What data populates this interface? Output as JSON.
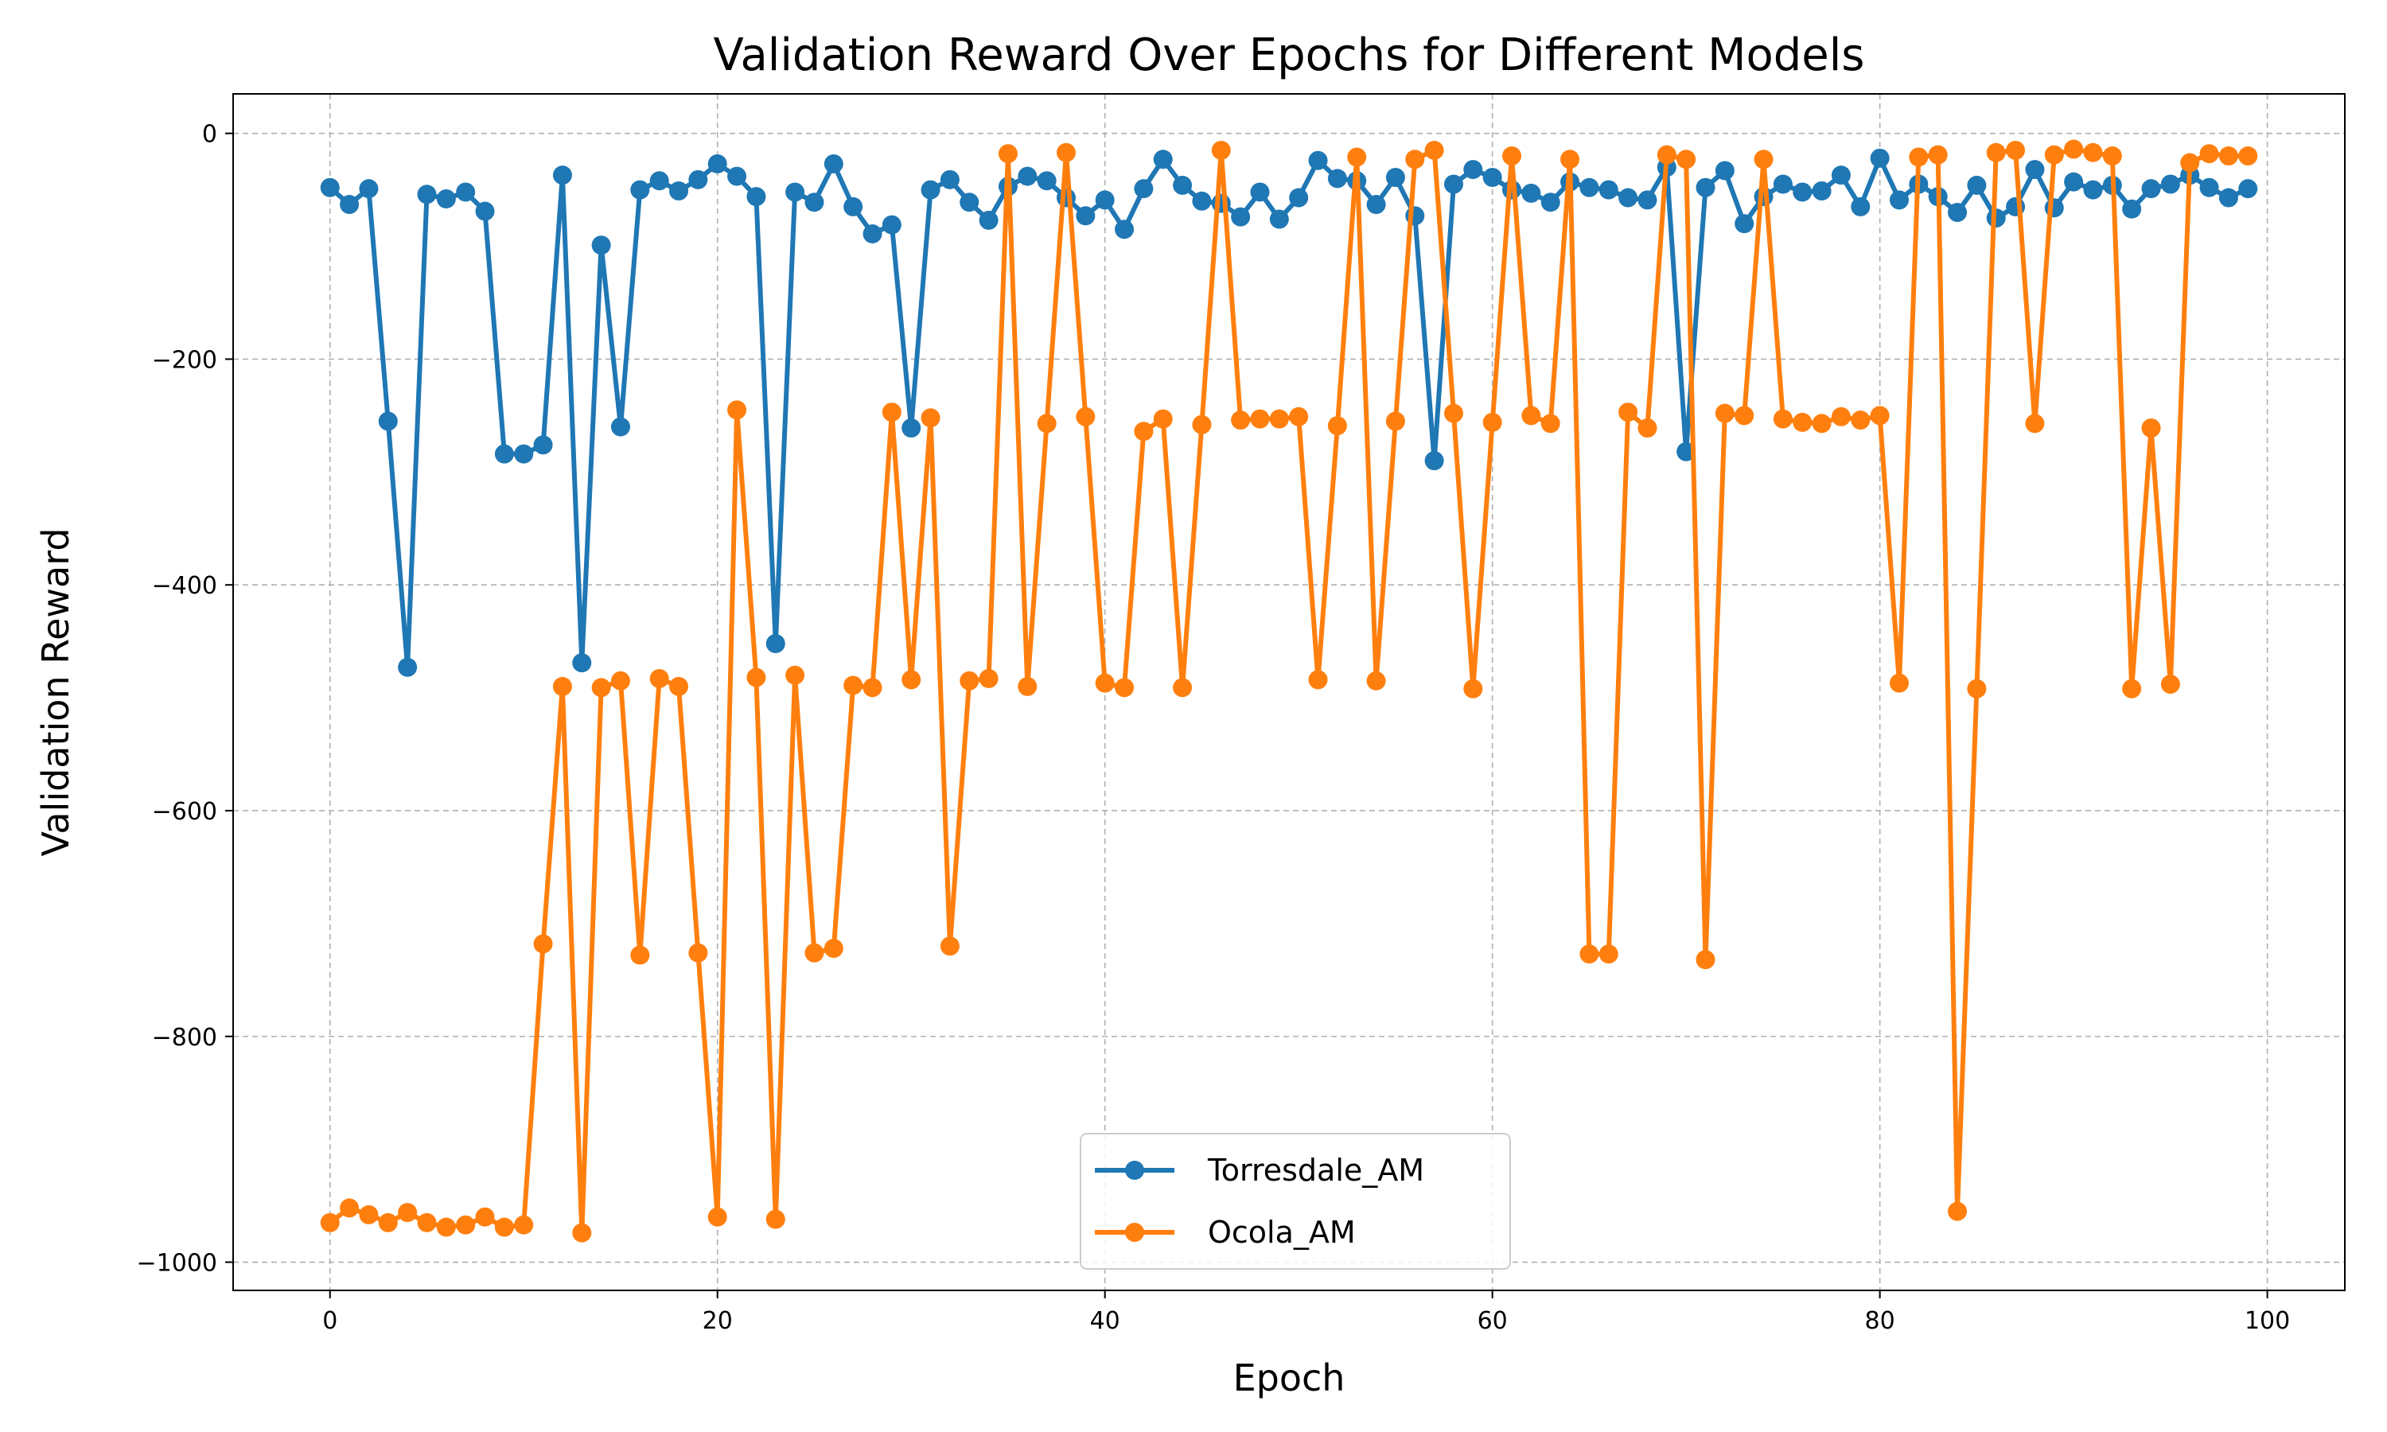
{
  "chart_data": {
    "type": "line",
    "title": "Validation Reward Over Epochs for Different Models",
    "xlabel": "Epoch",
    "ylabel": "Validation Reward",
    "xlim": [
      -5,
      104
    ],
    "ylim": [
      -1025,
      35
    ],
    "xticks": [
      0,
      20,
      40,
      60,
      80,
      100
    ],
    "yticks": [
      0,
      -200,
      -400,
      -600,
      -800,
      -1000
    ],
    "grid": true,
    "legend_position": "lower-center",
    "series": [
      {
        "name": "Torresdale_AM",
        "color": "#1f77b4",
        "x": [
          0,
          1,
          2,
          3,
          4,
          5,
          6,
          7,
          8,
          9,
          10,
          11,
          12,
          13,
          14,
          15,
          16,
          17,
          18,
          19,
          20,
          21,
          22,
          23,
          24,
          25,
          26,
          27,
          28,
          29,
          30,
          31,
          32,
          33,
          34,
          35,
          36,
          37,
          38,
          39,
          40,
          41,
          42,
          43,
          44,
          45,
          46,
          47,
          48,
          49,
          50,
          51,
          52,
          53,
          54,
          55,
          56,
          57,
          58,
          59,
          60,
          61,
          62,
          63,
          64,
          65,
          66,
          67,
          68,
          69,
          70,
          71,
          72,
          73,
          74,
          75,
          76,
          77,
          78,
          79,
          80,
          81,
          82,
          83,
          84,
          85,
          86,
          87,
          88,
          89,
          90,
          91,
          92,
          93,
          94,
          95,
          96,
          97,
          98,
          99
        ],
        "values": [
          -48,
          -63,
          -49,
          -255,
          -473,
          -54,
          -58,
          -52,
          -69,
          -284,
          -284,
          -276,
          -37,
          -469,
          -99,
          -260,
          -50,
          -42,
          -51,
          -41,
          -27,
          -38,
          -56,
          -452,
          -52,
          -61,
          -27,
          -65,
          -89,
          -81,
          -261,
          -50,
          -41,
          -61,
          -77,
          -47,
          -38,
          -42,
          -57,
          -73,
          -59,
          -85,
          -49,
          -23,
          -46,
          -60,
          -62,
          -74,
          -52,
          -76,
          -57,
          -24,
          -40,
          -42,
          -63,
          -39,
          -73,
          -290,
          -45,
          -32,
          -39,
          -50,
          -53,
          -61,
          -43,
          -48,
          -50,
          -57,
          -59,
          -30,
          -282,
          -48,
          -33,
          -80,
          -56,
          -45,
          -52,
          -51,
          -37,
          -65,
          -22,
          -59,
          -45,
          -56,
          -70,
          -46,
          -75,
          -65,
          -32,
          -66,
          -43,
          -50,
          -46,
          -67,
          -49,
          -45,
          -37,
          -48,
          -57,
          -49
        ]
      },
      {
        "name": "Ocola_AM",
        "color": "#ff7f0e",
        "x": [
          0,
          1,
          2,
          3,
          4,
          5,
          6,
          7,
          8,
          9,
          10,
          11,
          12,
          13,
          14,
          15,
          16,
          17,
          18,
          19,
          20,
          21,
          22,
          23,
          24,
          25,
          26,
          27,
          28,
          29,
          30,
          31,
          32,
          33,
          34,
          35,
          36,
          37,
          38,
          39,
          40,
          41,
          42,
          43,
          44,
          45,
          46,
          47,
          48,
          49,
          50,
          51,
          52,
          53,
          54,
          55,
          56,
          57,
          58,
          59,
          60,
          61,
          62,
          63,
          64,
          65,
          66,
          67,
          68,
          69,
          70,
          71,
          72,
          73,
          74,
          75,
          76,
          77,
          78,
          79,
          80,
          81,
          82,
          83,
          84,
          85,
          86,
          87,
          88,
          89,
          90,
          91,
          92,
          93,
          94,
          95,
          96,
          97,
          98,
          99
        ],
        "values": [
          -965,
          -952,
          -958,
          -965,
          -956,
          -965,
          -969,
          -967,
          -960,
          -969,
          -967,
          -718,
          -490,
          -974,
          -491,
          -485,
          -728,
          -483,
          -490,
          -726,
          -960,
          -245,
          -482,
          -962,
          -480,
          -726,
          -722,
          -489,
          -491,
          -247,
          -484,
          -252,
          -720,
          -485,
          -483,
          -18,
          -490,
          -257,
          -17,
          -251,
          -487,
          -491,
          -264,
          -253,
          -491,
          -258,
          -15,
          -254,
          -253,
          -253,
          -251,
          -484,
          -259,
          -21,
          -485,
          -255,
          -23,
          -15,
          -248,
          -492,
          -256,
          -20,
          -250,
          -257,
          -23,
          -727,
          -727,
          -247,
          -261,
          -19,
          -23,
          -732,
          -248,
          -250,
          -23,
          -253,
          -256,
          -257,
          -251,
          -254,
          -250,
          -487,
          -21,
          -19,
          -955,
          -492,
          -17,
          -15,
          -257,
          -19,
          -14,
          -17,
          -20,
          -492,
          -261,
          -488,
          -26,
          -18,
          -20,
          -20
        ]
      }
    ]
  }
}
